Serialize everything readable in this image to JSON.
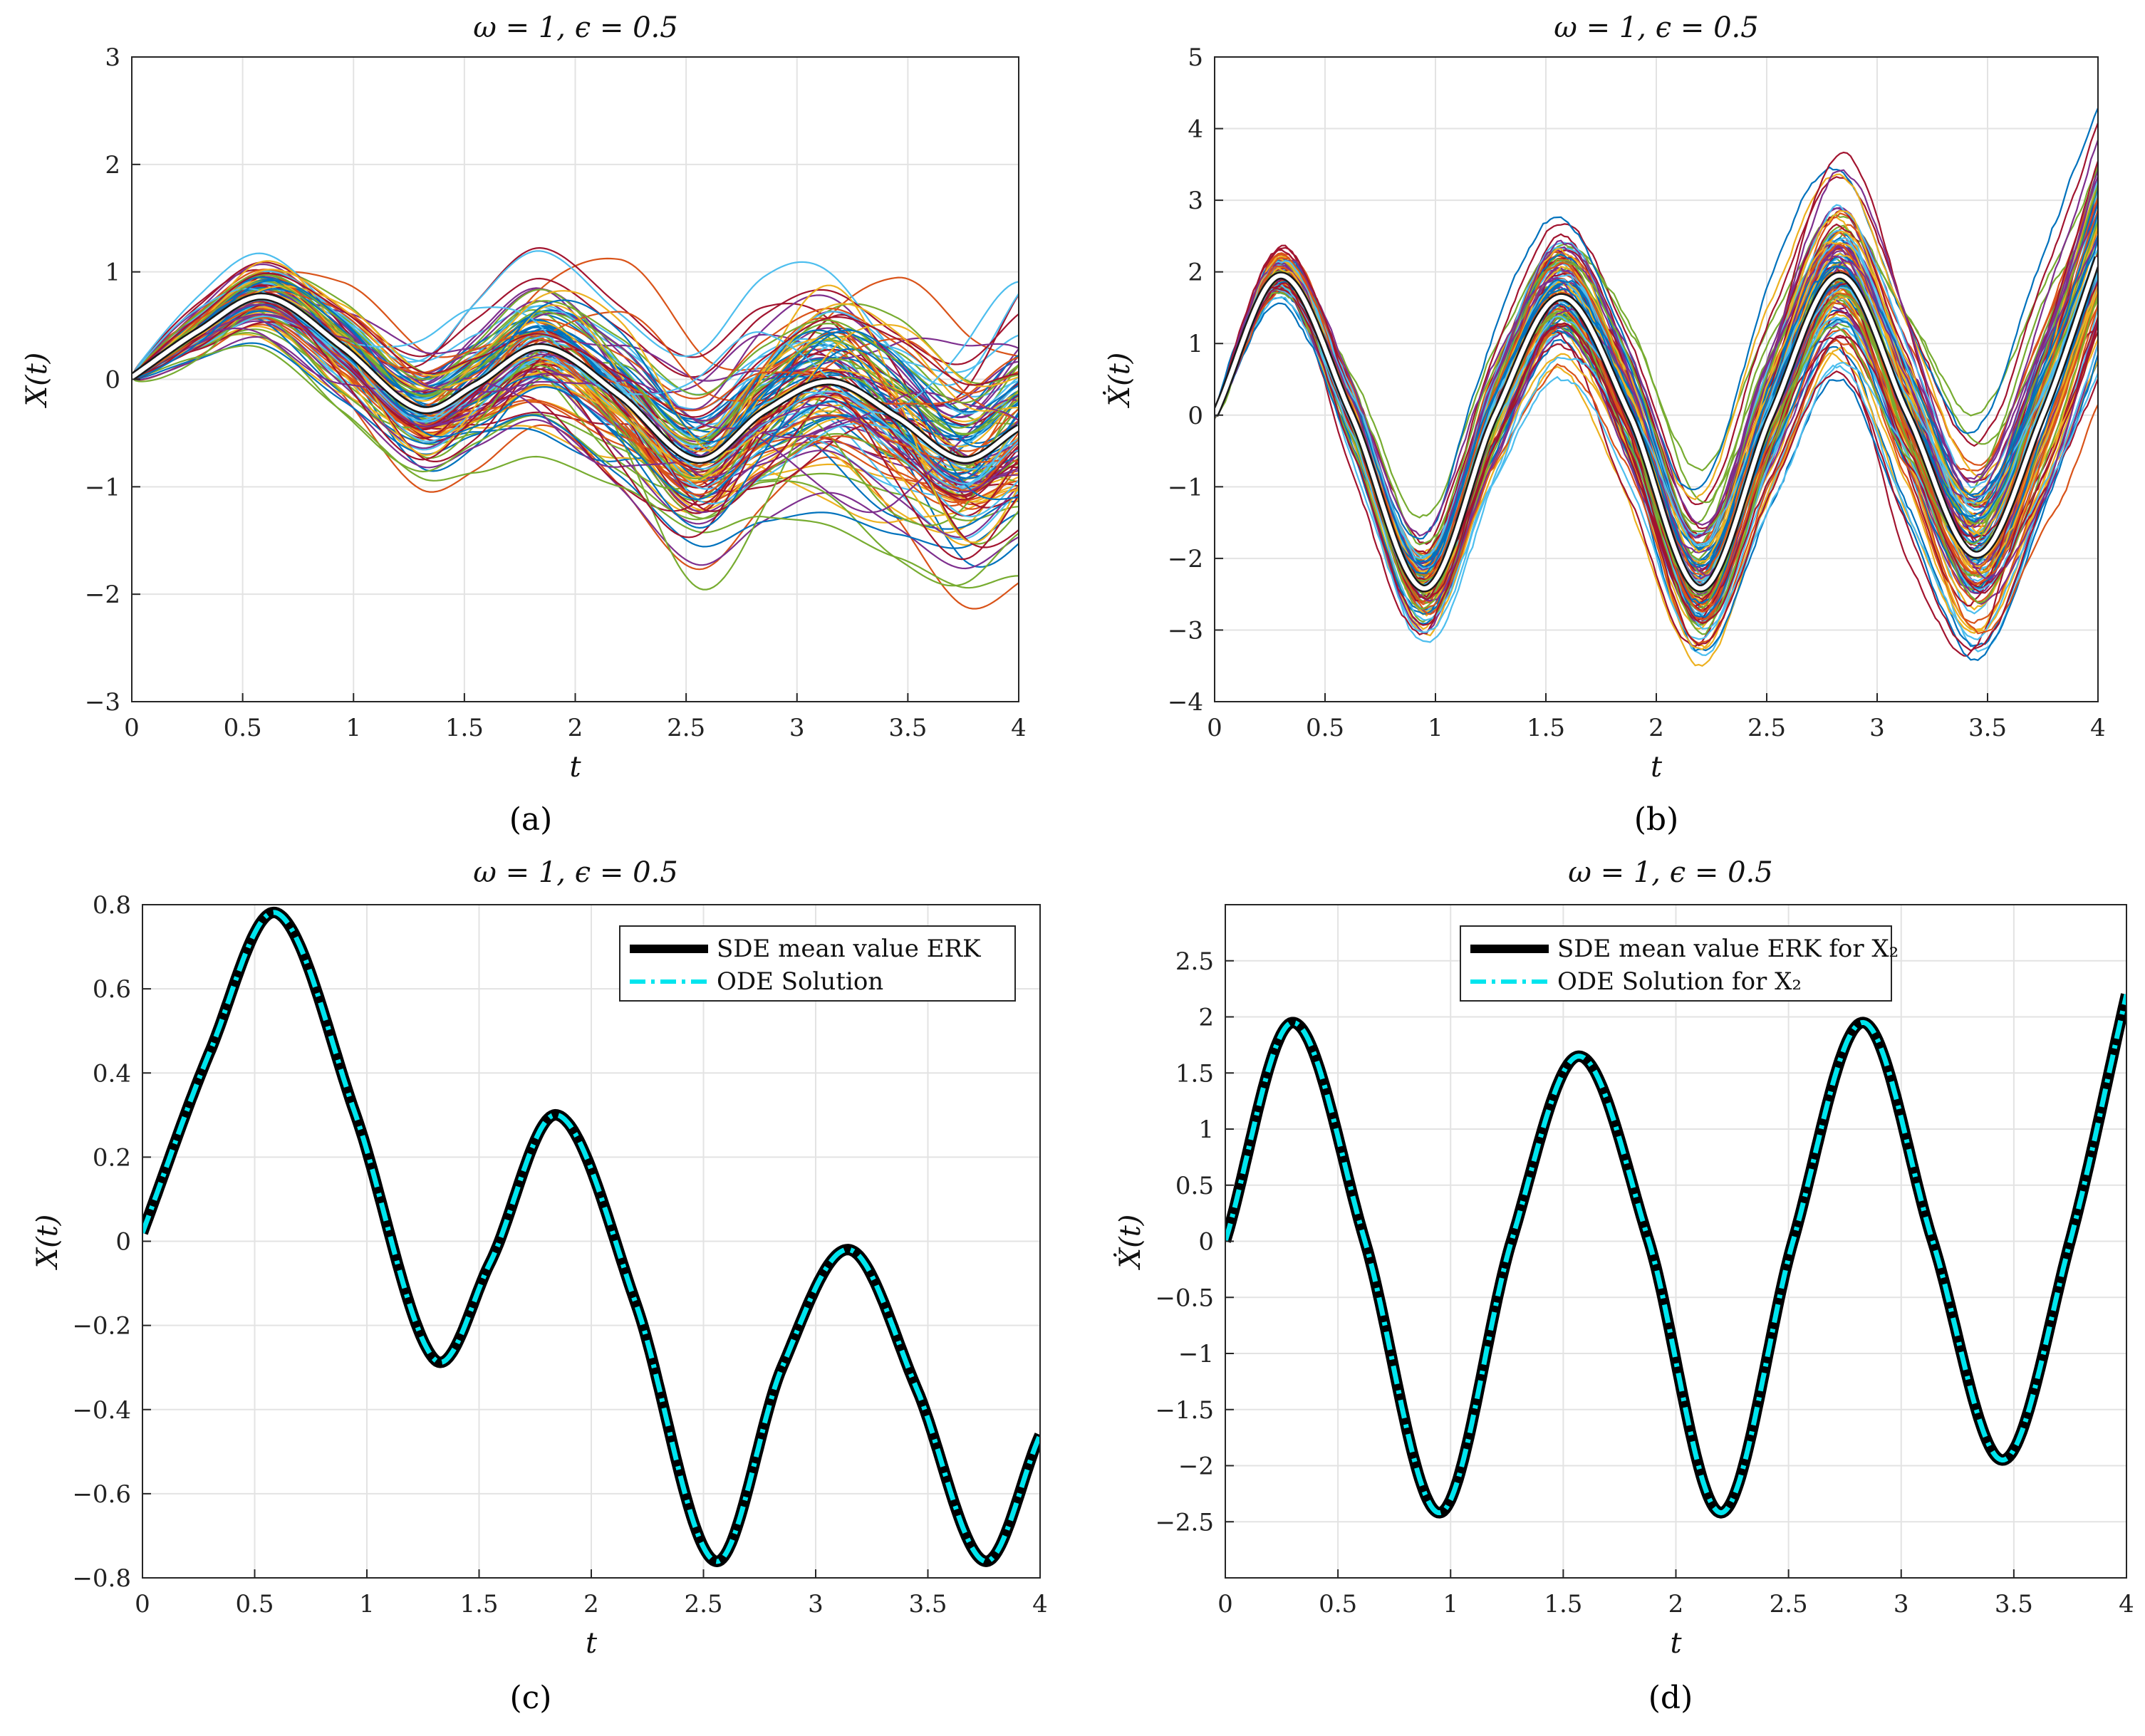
{
  "figure": {
    "colors": {
      "paths": [
        "#0072BD",
        "#D95319",
        "#EDB120",
        "#7E2F8E",
        "#77AC30",
        "#4DBEEE",
        "#A2142F"
      ],
      "mean_curve": "#ffffff",
      "sde_mean": "#000000",
      "ode_solution": "#00E5EE",
      "grid": "#e3e3e3",
      "axis": "#262626"
    }
  },
  "chart_data": [
    {
      "id": "a",
      "type": "line",
      "panel_label": "(a)",
      "title": "ω = 1, ϵ = 0.5",
      "xlabel": "t",
      "ylabel": "X(t)",
      "xlim": [
        0,
        4
      ],
      "ylim": [
        -3,
        3
      ],
      "xticks": [
        0,
        0.5,
        1,
        1.5,
        2,
        2.5,
        3,
        3.5,
        4
      ],
      "xtick_labels": [
        "0",
        "0.5",
        "1",
        "1.5",
        "2",
        "2.5",
        "3",
        "3.5",
        "4"
      ],
      "yticks": [
        -3,
        -2,
        -1,
        0,
        1,
        2,
        3
      ],
      "ytick_labels": [
        "−3",
        "−2",
        "−1",
        "0",
        "1",
        "2",
        "3"
      ],
      "grid": true,
      "stochastic_paths": {
        "count": 120,
        "seed": 11,
        "description": "sample paths of X(t) fanning out around the mean",
        "spread_at_t4": 0.85
      },
      "series": [
        {
          "name": "mean",
          "x": [
            0,
            0.3,
            0.6,
            0.95,
            1.3,
            1.55,
            1.85,
            2.2,
            2.55,
            2.85,
            3.15,
            3.45,
            3.75,
            4.0
          ],
          "values": [
            0.02,
            0.45,
            0.77,
            0.3,
            -0.28,
            -0.05,
            0.3,
            -0.15,
            -0.75,
            -0.3,
            -0.02,
            -0.35,
            -0.75,
            -0.45
          ]
        }
      ]
    },
    {
      "id": "b",
      "type": "line",
      "panel_label": "(b)",
      "title": "ω = 1, ϵ = 0.5",
      "xlabel": "t",
      "ylabel": "Ẋ(t)",
      "xlim": [
        0,
        4
      ],
      "ylim": [
        -4,
        5
      ],
      "xticks": [
        0,
        0.5,
        1,
        1.5,
        2,
        2.5,
        3,
        3.5,
        4
      ],
      "xtick_labels": [
        "0",
        "0.5",
        "1",
        "1.5",
        "2",
        "2.5",
        "3",
        "3.5",
        "4"
      ],
      "yticks": [
        -4,
        -3,
        -2,
        -1,
        0,
        1,
        2,
        3,
        4,
        5
      ],
      "ytick_labels": [
        "−4",
        "−3",
        "−2",
        "−1",
        "0",
        "1",
        "2",
        "3",
        "4",
        "5"
      ],
      "grid": true,
      "stochastic_paths": {
        "count": 120,
        "seed": 23,
        "description": "noisy sample paths of Ẋ(t) around the mean",
        "spread_at_t4": 1.0
      },
      "series": [
        {
          "name": "mean",
          "x": [
            0,
            0.3,
            0.62,
            0.95,
            1.27,
            1.57,
            1.88,
            2.2,
            2.52,
            2.83,
            3.14,
            3.45,
            3.75,
            4.0
          ],
          "values": [
            0,
            1.95,
            0,
            -2.42,
            0,
            1.65,
            0,
            -2.42,
            0,
            1.95,
            0,
            -1.95,
            0,
            2.2
          ]
        }
      ]
    },
    {
      "id": "c",
      "type": "line",
      "panel_label": "(c)",
      "title": "ω = 1, ϵ = 0.5",
      "xlabel": "t",
      "ylabel": "X(t)",
      "xlim": [
        0,
        4
      ],
      "ylim": [
        -0.8,
        0.8
      ],
      "xticks": [
        0,
        0.5,
        1,
        1.5,
        2,
        2.5,
        3,
        3.5,
        4
      ],
      "xtick_labels": [
        "0",
        "0.5",
        "1",
        "1.5",
        "2",
        "2.5",
        "3",
        "3.5",
        "4"
      ],
      "yticks": [
        -0.8,
        -0.6,
        -0.4,
        -0.2,
        0,
        0.2,
        0.4,
        0.6,
        0.8
      ],
      "ytick_labels": [
        "−0.8",
        "−0.6",
        "−0.4",
        "−0.2",
        "0",
        "0.2",
        "0.4",
        "0.6",
        "0.8"
      ],
      "grid": true,
      "legend_position": "top-right",
      "series": [
        {
          "name": "SDE mean value ERK",
          "style": "solid",
          "x": [
            0,
            0.3,
            0.6,
            0.95,
            1.3,
            1.55,
            1.85,
            2.2,
            2.55,
            2.85,
            3.15,
            3.45,
            3.75,
            4.0
          ],
          "values": [
            0.02,
            0.45,
            0.78,
            0.3,
            -0.28,
            -0.05,
            0.3,
            -0.15,
            -0.76,
            -0.3,
            -0.02,
            -0.35,
            -0.76,
            -0.46
          ]
        },
        {
          "name": "ODE Solution",
          "style": "dashdot",
          "x": [
            0,
            0.3,
            0.6,
            0.95,
            1.3,
            1.55,
            1.85,
            2.2,
            2.55,
            2.85,
            3.15,
            3.45,
            3.75,
            4.0
          ],
          "values": [
            0.02,
            0.45,
            0.78,
            0.3,
            -0.28,
            -0.05,
            0.3,
            -0.15,
            -0.76,
            -0.3,
            -0.02,
            -0.35,
            -0.76,
            -0.46
          ]
        }
      ]
    },
    {
      "id": "d",
      "type": "line",
      "panel_label": "(d)",
      "title": "ω = 1, ϵ = 0.5",
      "xlabel": "t",
      "ylabel": "Ẋ(t)",
      "xlim": [
        0,
        4
      ],
      "ylim": [
        -3,
        3
      ],
      "xticks": [
        0,
        0.5,
        1,
        1.5,
        2,
        2.5,
        3,
        3.5,
        4
      ],
      "xtick_labels": [
        "0",
        "0.5",
        "1",
        "1.5",
        "2",
        "2.5",
        "3",
        "3.5",
        "4"
      ],
      "yticks": [
        -2.5,
        -2,
        -1.5,
        -1,
        -0.5,
        0,
        0.5,
        1,
        1.5,
        2,
        2.5
      ],
      "ytick_labels": [
        "−2.5",
        "−2",
        "−1.5",
        "−1",
        "−0.5",
        "0",
        "0.5",
        "1",
        "1.5",
        "2",
        "2.5"
      ],
      "grid": true,
      "legend_position": "top-center",
      "series": [
        {
          "name": "SDE mean value ERK for X₂",
          "style": "solid",
          "x": [
            0,
            0.3,
            0.62,
            0.95,
            1.27,
            1.57,
            1.88,
            2.2,
            2.52,
            2.83,
            3.14,
            3.45,
            3.75,
            4.0
          ],
          "values": [
            0,
            1.95,
            0,
            -2.42,
            0,
            1.65,
            0,
            -2.42,
            0,
            1.95,
            0,
            -1.95,
            0,
            2.2
          ]
        },
        {
          "name": "ODE Solution for X₂",
          "style": "dashdot",
          "x": [
            0,
            0.3,
            0.62,
            0.95,
            1.27,
            1.57,
            1.88,
            2.2,
            2.52,
            2.83,
            3.14,
            3.45,
            3.75,
            4.0
          ],
          "values": [
            0,
            1.95,
            0,
            -2.42,
            0,
            1.65,
            0,
            -2.42,
            0,
            1.95,
            0,
            -1.95,
            0,
            2.2
          ]
        }
      ]
    }
  ]
}
